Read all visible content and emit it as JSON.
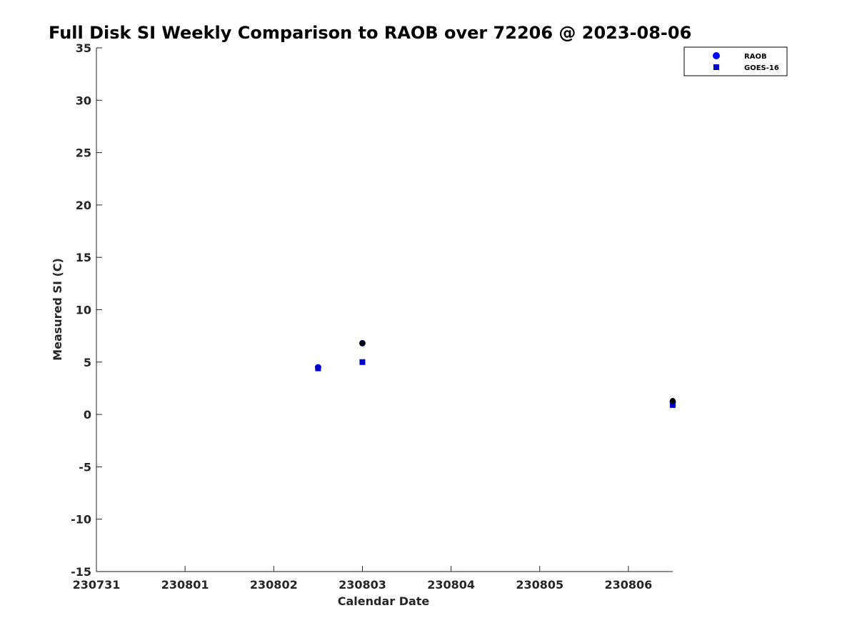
{
  "chart_data": {
    "type": "scatter",
    "title": "Full Disk SI Weekly Comparison to RAOB over 72206 @ 2023-08-06",
    "xlabel": "Calendar Date",
    "ylabel": "Measured SI (C)",
    "xlim": [
      0,
      6.5
    ],
    "ylim": [
      -15,
      35
    ],
    "x_ticks": [
      0,
      1,
      2,
      3,
      4,
      5,
      6
    ],
    "x_tick_labels": [
      "230731",
      "230801",
      "230802",
      "230803",
      "230804",
      "230805",
      "230806"
    ],
    "y_ticks": [
      -15,
      -10,
      -5,
      0,
      5,
      10,
      15,
      20,
      25,
      30,
      35
    ],
    "y_tick_labels": [
      "-15",
      "-10",
      "-5",
      "0",
      "5",
      "10",
      "15",
      "20",
      "25",
      "30",
      "35"
    ],
    "grid": false,
    "legend_position": "top-right",
    "series": [
      {
        "name": "RAOB",
        "marker": "circle",
        "color": "#0000ff",
        "points": [
          [
            2.5,
            4.5
          ],
          [
            3.0,
            6.8
          ],
          [
            6.5,
            1.2
          ]
        ]
      },
      {
        "name": "GOES-16",
        "marker": "square",
        "color": "#0000cc",
        "points": [
          [
            2.5,
            4.4
          ],
          [
            3.0,
            5.0
          ],
          [
            6.5,
            0.9
          ]
        ]
      }
    ],
    "outliers": {
      "color": "#000000",
      "points": [
        [
          3.0,
          6.8
        ],
        [
          6.5,
          1.3
        ]
      ]
    }
  }
}
